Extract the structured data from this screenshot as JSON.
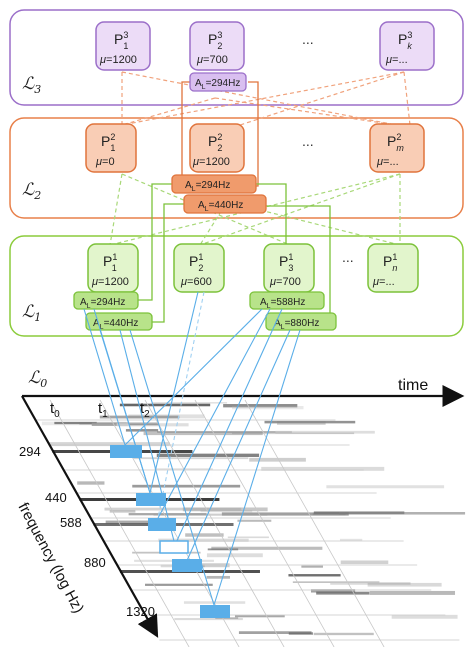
{
  "layers": {
    "l3": {
      "label": "ℒ",
      "sub": "3",
      "stroke": "#9b6fc9"
    },
    "l2": {
      "label": "ℒ",
      "sub": "2",
      "stroke": "#e8804a"
    },
    "l1": {
      "label": "ℒ",
      "sub": "1",
      "stroke": "#8ccc3c"
    },
    "l0": {
      "label": "ℒ",
      "sub": "0"
    }
  },
  "nodes": {
    "n31": {
      "p_sub": "1",
      "p_sup": "3",
      "mu": "=1200"
    },
    "n32": {
      "p_sub": "2",
      "p_sup": "3",
      "mu": "=700"
    },
    "n3k": {
      "p_sub": "k",
      "p_sup": "3",
      "mu": "=..."
    },
    "n21": {
      "p_sub": "1",
      "p_sup": "2",
      "mu": "=0"
    },
    "n22": {
      "p_sub": "2",
      "p_sup": "2",
      "mu": "=1200"
    },
    "n2m": {
      "p_sub": "m",
      "p_sup": "2",
      "mu": "=..."
    },
    "n11": {
      "p_sub": "1",
      "p_sup": "1",
      "mu": "=1200"
    },
    "n12": {
      "p_sub": "2",
      "p_sup": "1",
      "mu": "=600"
    },
    "n13": {
      "p_sub": "3",
      "p_sup": "1",
      "mu": "=700"
    },
    "n1n": {
      "p_sub": "n",
      "p_sup": "1",
      "mu": "=..."
    }
  },
  "ellipsis": "...",
  "attrs": {
    "a3_1": "=294Hz",
    "a2_1": "=294Hz",
    "a2_2": "=440Hz",
    "a1_1": "=294Hz",
    "a1_2": "=440Hz",
    "a1_3": "=588Hz",
    "a1_4": "=880Hz"
  },
  "attr_prefix": "A",
  "attr_prefix_sub": "L",
  "mu_symbol": "μ",
  "p_symbol": "P",
  "axes": {
    "time": "time",
    "frequency": "frequency (log Hz)",
    "t0": "t",
    "t0_sub": "0",
    "t1": "t",
    "t1_sub": "1",
    "t2": "t",
    "t2_sub": "2"
  },
  "frequencies": [
    "294",
    "440",
    "588",
    "880",
    "1320"
  ],
  "colors": {
    "purple_fill": "#ecdcf7",
    "purple_stroke": "#9b6fc9",
    "orange_fill": "#f9cdb5",
    "orange_stroke": "#e0743c",
    "green_fill": "#e2f5cc",
    "green_stroke": "#7cc23a",
    "blue": "#5aaee8"
  }
}
